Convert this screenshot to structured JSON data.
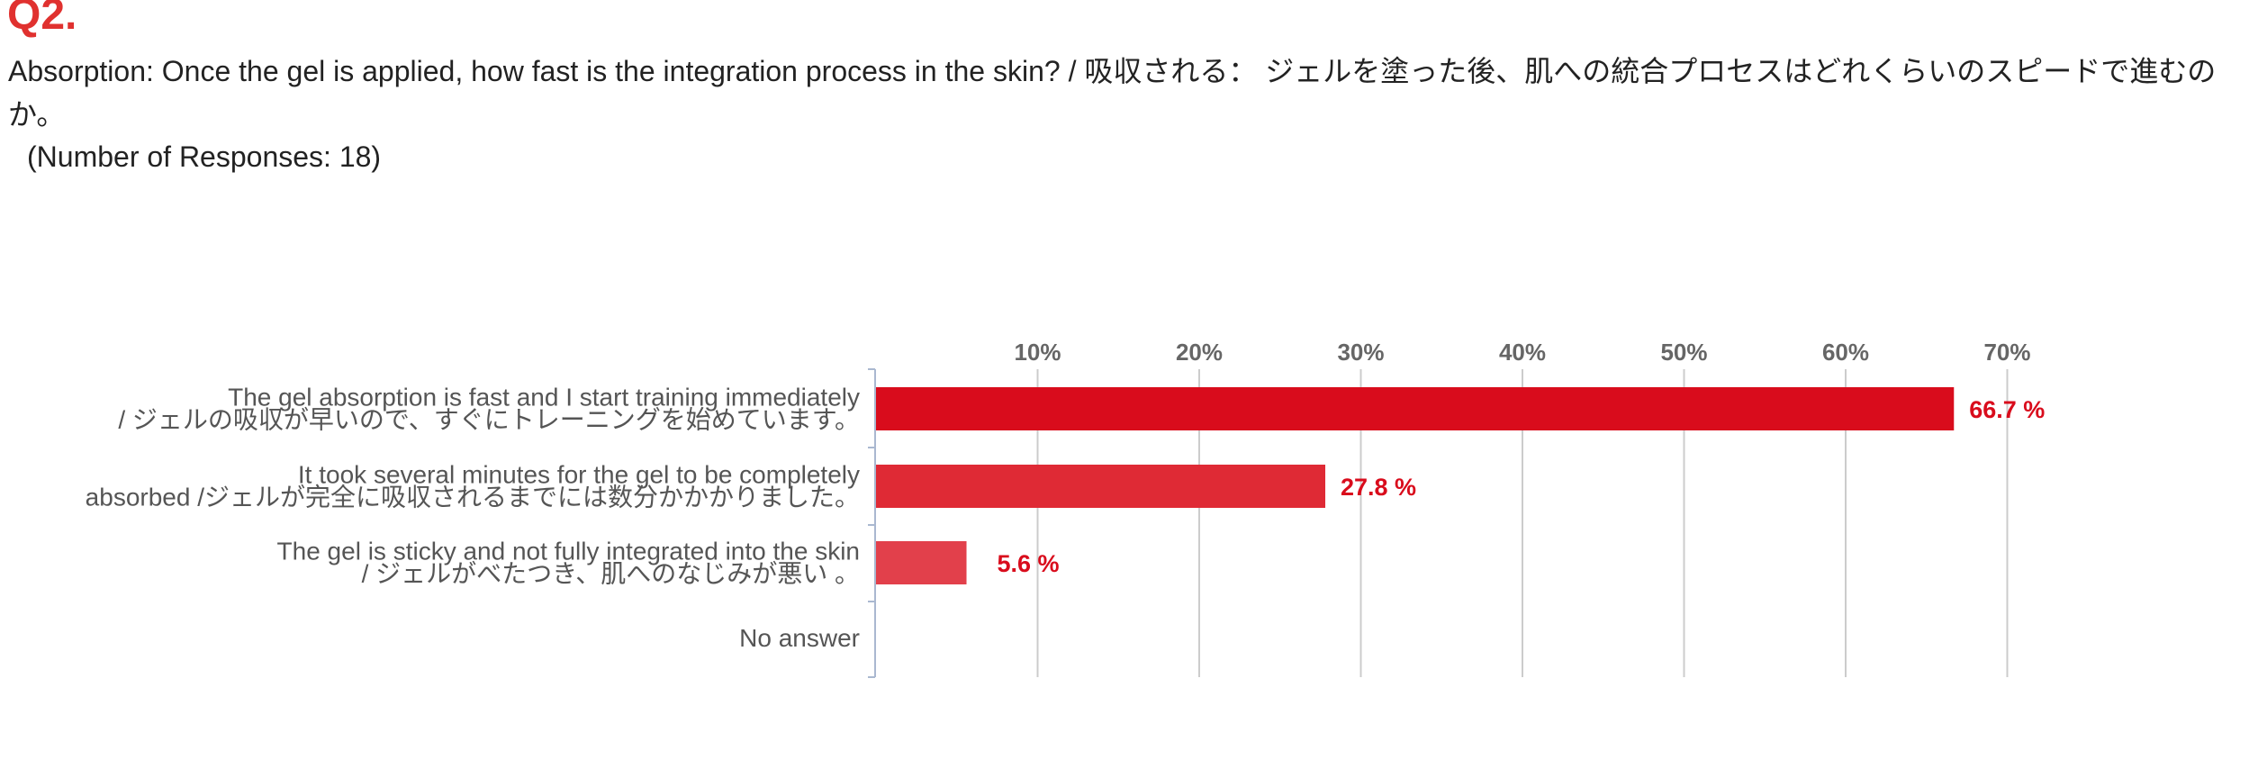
{
  "question": {
    "number": "Q2.",
    "text": "Absorption: Once the gel is applied, how fast is the integration process in the skin? / 吸収される： ジェルを塗った後、肌への統合プロセスはどれくらいのスピードで進むのか。",
    "responses": "(Number of Responses: 18)"
  },
  "chart_data": {
    "type": "bar",
    "orientation": "horizontal",
    "categories": [
      [
        "The gel absorption is fast and I start training immediately",
        "/ ジェルの吸収が早いので、すぐにトレーニングを始めています。"
      ],
      [
        "It took several minutes for the gel to be completely",
        "absorbed /ジェルが完全に吸収されるまでには数分かかかりました。"
      ],
      [
        "The gel is sticky and not fully integrated into the skin",
        "/ ジェルがべたつき、肌へのなじみが悪い 。"
      ],
      [
        "No answer"
      ]
    ],
    "values": [
      66.7,
      27.8,
      5.6,
      0
    ],
    "value_labels": [
      "66.7 %",
      "27.8 %",
      "5.6 %",
      ""
    ],
    "x_ticks": [
      "10%",
      "20%",
      "30%",
      "40%",
      "50%",
      "60%",
      "70%"
    ],
    "x_tick_values": [
      10,
      20,
      30,
      40,
      50,
      60,
      70
    ],
    "xlim": [
      0,
      70
    ],
    "grid": true,
    "axis_position": "top",
    "colors": {
      "bars": [
        "#d90c1c",
        "#df2a35",
        "#e2404b",
        "#e55360"
      ],
      "label": "#d90c1c",
      "grid": "#cccccc",
      "axis": "#aab8d0"
    }
  }
}
